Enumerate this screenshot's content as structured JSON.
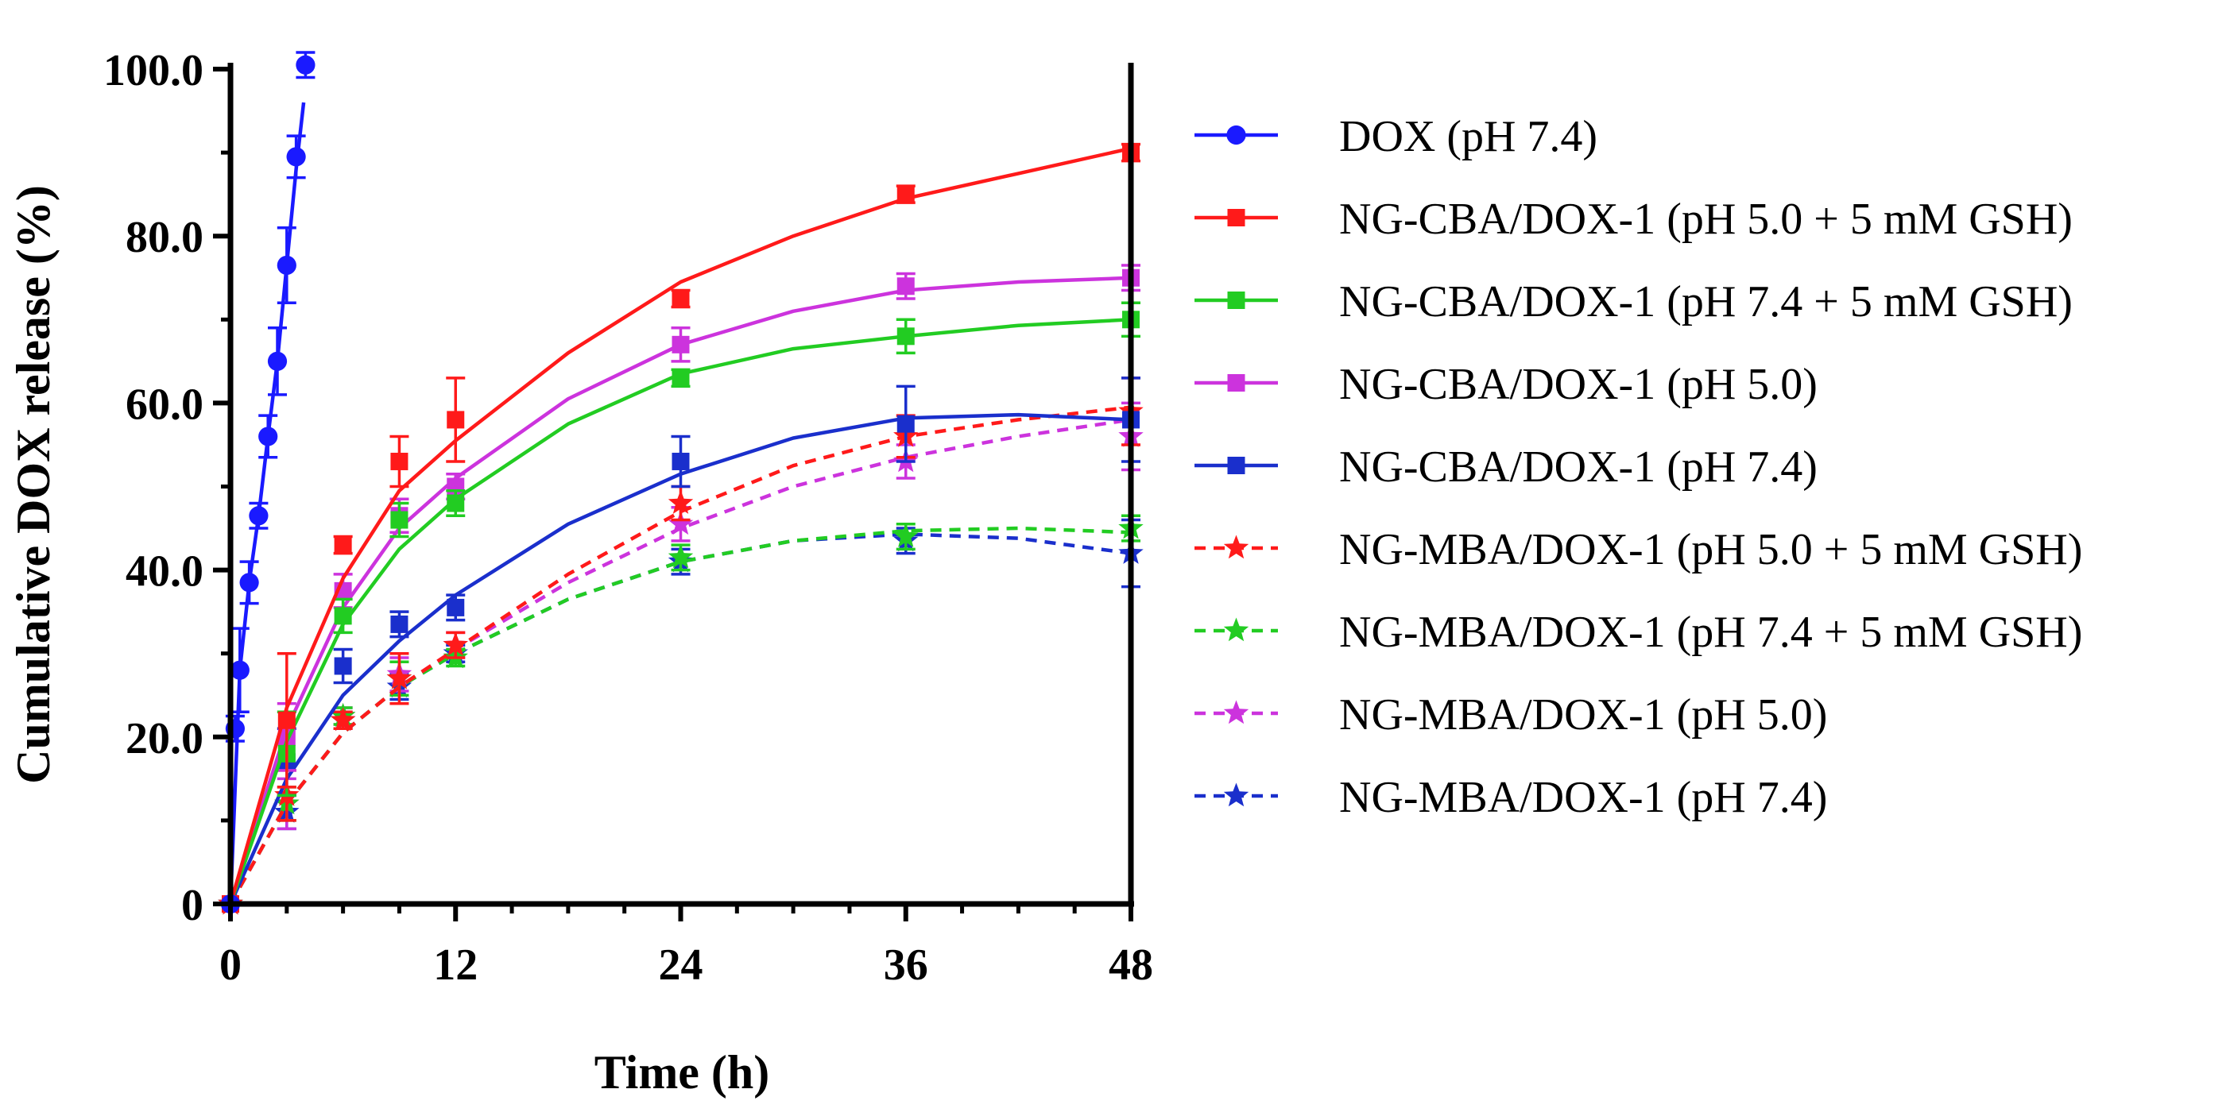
{
  "chart_data": {
    "type": "line",
    "xlabel": "Time (h)",
    "ylabel": "Cumulative DOX release (%)",
    "xlim": [
      0,
      48
    ],
    "ylim": [
      0,
      100
    ],
    "xticks": [
      0,
      12,
      24,
      36,
      48
    ],
    "xtick_labels": [
      "0",
      "12",
      "24",
      "36",
      "48"
    ],
    "yticks": [
      0,
      20,
      40,
      60,
      80,
      100
    ],
    "ytick_labels": [
      "0",
      "20.0",
      "40.0",
      "60.0",
      "80.0",
      "100.0"
    ],
    "legend_position": "right",
    "series": [
      {
        "name": "DOX (pH 7.4)",
        "color": "#1a1aff",
        "dashed": false,
        "marker": "circle",
        "x": [
          0,
          0.25,
          0.5,
          1,
          1.5,
          2,
          2.5,
          3,
          3.5,
          4
        ],
        "y": [
          0,
          21,
          28,
          38.5,
          46.5,
          56,
          65,
          76.5,
          89.5,
          100.5
        ],
        "err": [
          0,
          1.5,
          5,
          2.5,
          1.5,
          2.5,
          4,
          4.5,
          2.5,
          1.5
        ],
        "fit_x": [
          0,
          0.5,
          1,
          1.5,
          2,
          2.5,
          3,
          3.5,
          3.9
        ],
        "fit_y": [
          0,
          28,
          38.5,
          46.5,
          56,
          65,
          76.5,
          88,
          96
        ]
      },
      {
        "name": "NG-CBA/DOX-1 (pH 5.0 + 5 mM GSH)",
        "color": "#ff1a1a",
        "dashed": false,
        "marker": "square",
        "x": [
          0,
          3,
          6,
          9,
          12,
          24,
          36,
          48
        ],
        "y": [
          0,
          22,
          43,
          53,
          58,
          72.5,
          85,
          90
        ],
        "err": [
          0,
          8,
          1,
          3,
          5,
          1,
          1,
          1
        ],
        "fit_x": [
          0,
          3,
          6,
          9,
          12,
          18,
          24,
          30,
          36,
          42,
          48
        ],
        "fit_y": [
          0,
          23.5,
          39,
          49.5,
          55.5,
          66,
          74.5,
          80,
          84.5,
          87.5,
          90.5
        ]
      },
      {
        "name": "NG-CBA/DOX-1 (pH 7.4 + 5 mM GSH)",
        "color": "#22cc22",
        "dashed": false,
        "marker": "square",
        "x": [
          0,
          3,
          6,
          9,
          12,
          24,
          36,
          48
        ],
        "y": [
          0,
          18,
          34.5,
          46,
          48,
          63,
          68,
          70
        ],
        "err": [
          0,
          5,
          2,
          2,
          1.5,
          1,
          2,
          2
        ],
        "fit_x": [
          0,
          3,
          6,
          9,
          12,
          18,
          24,
          30,
          36,
          42,
          48
        ],
        "fit_y": [
          0,
          19.5,
          33.5,
          42.5,
          48.5,
          57.5,
          63.5,
          66.5,
          68,
          69.3,
          70
        ]
      },
      {
        "name": "NG-CBA/DOX-1 (pH 5.0)",
        "color": "#cc33dd",
        "dashed": false,
        "marker": "square",
        "x": [
          0,
          3,
          6,
          9,
          12,
          24,
          36,
          48
        ],
        "y": [
          0,
          20,
          37.5,
          46.5,
          50,
          67,
          74,
          75
        ],
        "err": [
          0,
          4,
          2,
          2,
          1.5,
          2,
          1.5,
          1.5
        ],
        "fit_x": [
          0,
          3,
          6,
          9,
          12,
          18,
          24,
          30,
          36,
          42,
          48
        ],
        "fit_y": [
          0,
          21,
          35.5,
          45,
          51,
          60.5,
          67,
          71,
          73.5,
          74.5,
          75
        ]
      },
      {
        "name": "NG-CBA/DOX-1 (pH 7.4)",
        "color": "#1a2fcc",
        "dashed": false,
        "marker": "square",
        "x": [
          0,
          3,
          6,
          9,
          12,
          24,
          36,
          48
        ],
        "y": [
          0,
          17,
          28.5,
          33.5,
          35.5,
          53,
          57.5,
          58
        ],
        "err": [
          0,
          4,
          2,
          1.5,
          1.5,
          3,
          4.5,
          5
        ],
        "fit_x": [
          0,
          3,
          6,
          9,
          12,
          18,
          24,
          30,
          36,
          42,
          48
        ],
        "fit_y": [
          0,
          15,
          25,
          31.5,
          37,
          45.5,
          51.5,
          55.8,
          58.2,
          58.6,
          58
        ]
      },
      {
        "name": "NG-MBA/DOX-1 (pH 5.0 + 5 mM GSH)",
        "color": "#ff1a1a",
        "dashed": true,
        "marker": "star",
        "x": [
          0,
          3,
          6,
          9,
          12,
          24,
          36,
          48
        ],
        "y": [
          0,
          13,
          22,
          27,
          31,
          48,
          56,
          59
        ],
        "err": [
          0,
          3,
          1,
          3,
          1.5,
          2,
          2.5,
          4
        ],
        "fit_x": [
          0,
          3,
          6,
          9,
          12,
          18,
          24,
          30,
          36,
          42,
          48
        ],
        "fit_y": [
          0,
          12,
          20.5,
          26,
          30.5,
          39.5,
          47,
          52.5,
          56,
          58,
          59.5
        ]
      },
      {
        "name": "NG-MBA/DOX-1 (pH 7.4 + 5 mM GSH)",
        "color": "#22cc22",
        "dashed": true,
        "marker": "star",
        "x": [
          0,
          3,
          6,
          9,
          12,
          24,
          36,
          48
        ],
        "y": [
          0,
          12,
          22.5,
          27,
          29.5,
          41.5,
          44,
          45
        ],
        "err": [
          0,
          2,
          1,
          2,
          1,
          1.5,
          1.5,
          1.5
        ],
        "fit_x": [
          0,
          3,
          6,
          9,
          12,
          18,
          24,
          30,
          36,
          42,
          48
        ],
        "fit_y": [
          0,
          12,
          20.5,
          26,
          30,
          36.5,
          41,
          43.5,
          44.7,
          45,
          44.5
        ]
      },
      {
        "name": "NG-MBA/DOX-1 (pH 5.0)",
        "color": "#cc33dd",
        "dashed": true,
        "marker": "star",
        "x": [
          0,
          3,
          6,
          9,
          12,
          24,
          36,
          48
        ],
        "y": [
          0,
          12,
          22.5,
          27.5,
          31,
          45.5,
          53,
          56
        ],
        "err": [
          0,
          3,
          1,
          2,
          1.5,
          2,
          2,
          4
        ],
        "fit_x": [
          0,
          3,
          6,
          9,
          12,
          18,
          24,
          30,
          36,
          42,
          48
        ],
        "fit_y": [
          0,
          12,
          20.5,
          26,
          30.5,
          38.5,
          45,
          50,
          53.5,
          56,
          58
        ]
      },
      {
        "name": "NG-MBA/DOX-1 (pH 7.4)",
        "color": "#1a2fcc",
        "dashed": true,
        "marker": "star",
        "x": [
          0,
          3,
          6,
          9,
          12,
          24,
          36,
          48
        ],
        "y": [
          0,
          11,
          22,
          26,
          30,
          41,
          43.5,
          42
        ],
        "err": [
          0,
          2,
          1,
          1.5,
          1,
          1.5,
          1.5,
          4
        ],
        "fit_x": [
          0,
          3,
          6,
          9,
          12,
          18,
          24,
          30,
          36,
          42,
          48
        ],
        "fit_y": [
          0,
          12,
          20.5,
          26,
          30,
          36.5,
          41,
          43.5,
          44.3,
          43.8,
          42
        ]
      }
    ]
  }
}
